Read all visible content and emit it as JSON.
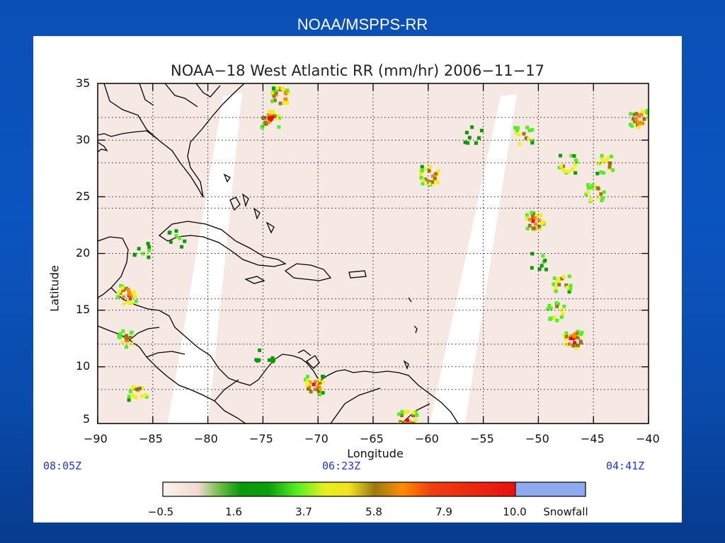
{
  "slide": {
    "title": "NOAA/MSPPS-RR"
  },
  "map": {
    "title": "NOAA−18 West Atlantic RR (mm/hr) 2006−11−17",
    "xlabel": "Longitude",
    "ylabel": "Latitude",
    "x_ticks": [
      "−90",
      "−85",
      "−80",
      "−75",
      "−70",
      "−65",
      "−60",
      "−55",
      "−50",
      "−45",
      "−40"
    ],
    "y_ticks": [
      "35",
      "30",
      "25",
      "20",
      "15",
      "10",
      "5"
    ],
    "extent": {
      "lon": [
        -90,
        -40
      ],
      "lat": [
        5,
        35
      ]
    },
    "times": {
      "left": "08:05Z",
      "center": "06:23Z",
      "right": "04:41Z"
    },
    "colorbar": {
      "labels": [
        "−0.5",
        "1.6",
        "3.7",
        "5.8",
        "7.9",
        "10.0",
        "Snowfall"
      ],
      "colors": {
        "low": "#f5e6e0",
        "green": "#0a9a0a",
        "lime": "#55ee22",
        "yellow": "#f0f020",
        "olive": "#9a7a10",
        "orange": "#ff8c00",
        "red": "#e81010",
        "snow": "#8fa9f0"
      }
    },
    "colors": {
      "background": "#f6e9e3",
      "nodata": "#ffffff",
      "coast": "#000000"
    },
    "rain_cells": [
      {
        "lon": -74.5,
        "lat": 32.0,
        "intensity": "heavy"
      },
      {
        "lon": -73.5,
        "lat": 34.0,
        "intensity": "heavy"
      },
      {
        "lon": -50.5,
        "lat": 23.0,
        "intensity": "heavy"
      },
      {
        "lon": -48.0,
        "lat": 17.5,
        "intensity": "moderate"
      },
      {
        "lon": -87.5,
        "lat": 16.5,
        "intensity": "heavy"
      },
      {
        "lon": -87.5,
        "lat": 12.5,
        "intensity": "moderate"
      },
      {
        "lon": -86.5,
        "lat": 8.0,
        "intensity": "moderate"
      },
      {
        "lon": -70.5,
        "lat": 8.5,
        "intensity": "heavy"
      },
      {
        "lon": -62.0,
        "lat": 5.5,
        "intensity": "heavy"
      },
      {
        "lon": -47.0,
        "lat": 12.5,
        "intensity": "heavy"
      },
      {
        "lon": -41.0,
        "lat": 32.0,
        "intensity": "heavy"
      },
      {
        "lon": -60.0,
        "lat": 27.0,
        "intensity": "heavy"
      },
      {
        "lon": -47.5,
        "lat": 28.0,
        "intensity": "moderate"
      },
      {
        "lon": -45.0,
        "lat": 25.5,
        "intensity": "moderate"
      },
      {
        "lon": -48.5,
        "lat": 15.0,
        "intensity": "moderate"
      },
      {
        "lon": -50.0,
        "lat": 19.5,
        "intensity": "light"
      },
      {
        "lon": -83.0,
        "lat": 21.5,
        "intensity": "light"
      },
      {
        "lon": -86.0,
        "lat": 20.5,
        "intensity": "light"
      },
      {
        "lon": -75.0,
        "lat": 11.0,
        "intensity": "light"
      },
      {
        "lon": -56.0,
        "lat": 30.5,
        "intensity": "light"
      },
      {
        "lon": -51.5,
        "lat": 30.5,
        "intensity": "moderate"
      },
      {
        "lon": -44.0,
        "lat": 28.0,
        "intensity": "moderate"
      }
    ]
  }
}
